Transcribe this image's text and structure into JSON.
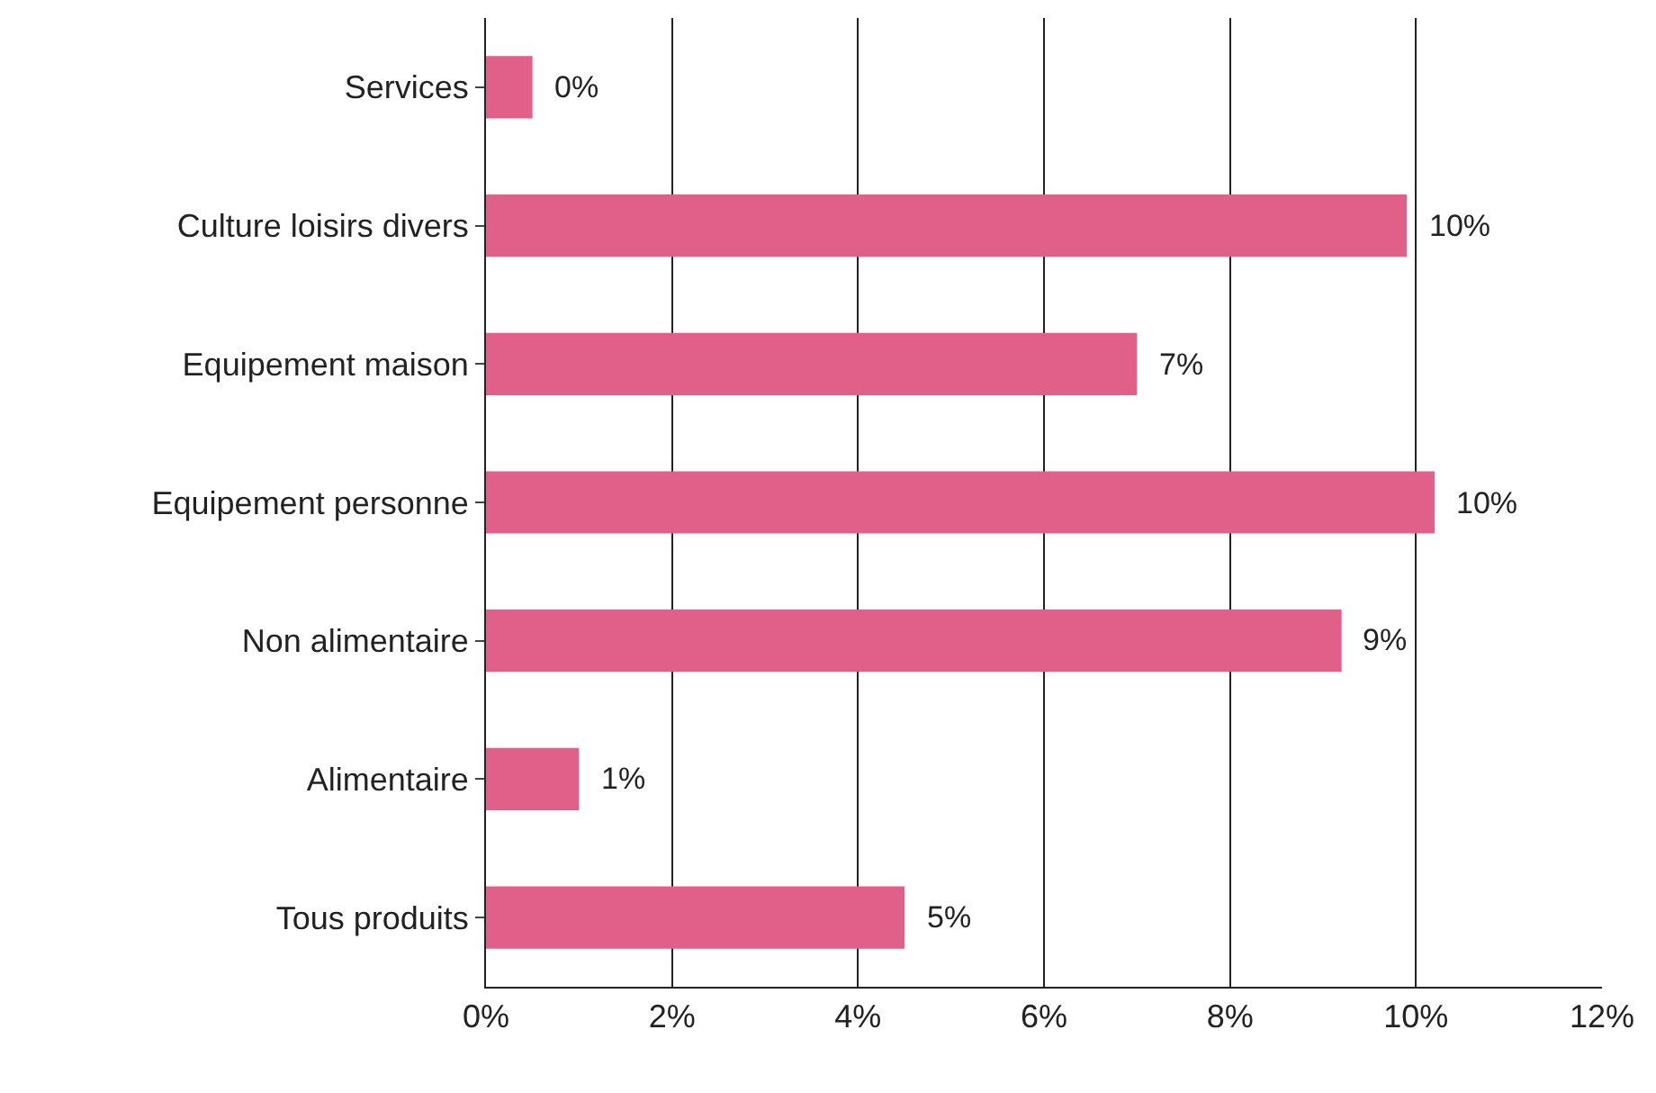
{
  "chart_data": {
    "type": "bar",
    "orientation": "horizontal",
    "categories": [
      "Services",
      "Culture loisirs divers",
      "Equipement maison",
      "Equipement personne",
      "Non alimentaire",
      "Alimentaire",
      "Tous produits"
    ],
    "values": [
      0.5,
      9.9,
      7.0,
      10.2,
      9.2,
      1.0,
      4.5
    ],
    "value_labels": [
      "0%",
      "10%",
      "7%",
      "10%",
      "9%",
      "1%",
      "5%"
    ],
    "color": "#e0608a",
    "xlim": [
      0,
      12
    ],
    "xticks": [
      {
        "value": 0,
        "label": "0%"
      },
      {
        "value": 2,
        "label": "2%"
      },
      {
        "value": 4,
        "label": "4%"
      },
      {
        "value": 6,
        "label": "6%"
      },
      {
        "value": 8,
        "label": "8%"
      },
      {
        "value": 10,
        "label": "10%"
      },
      {
        "value": 12,
        "label": "12%"
      }
    ],
    "grid": "x"
  }
}
